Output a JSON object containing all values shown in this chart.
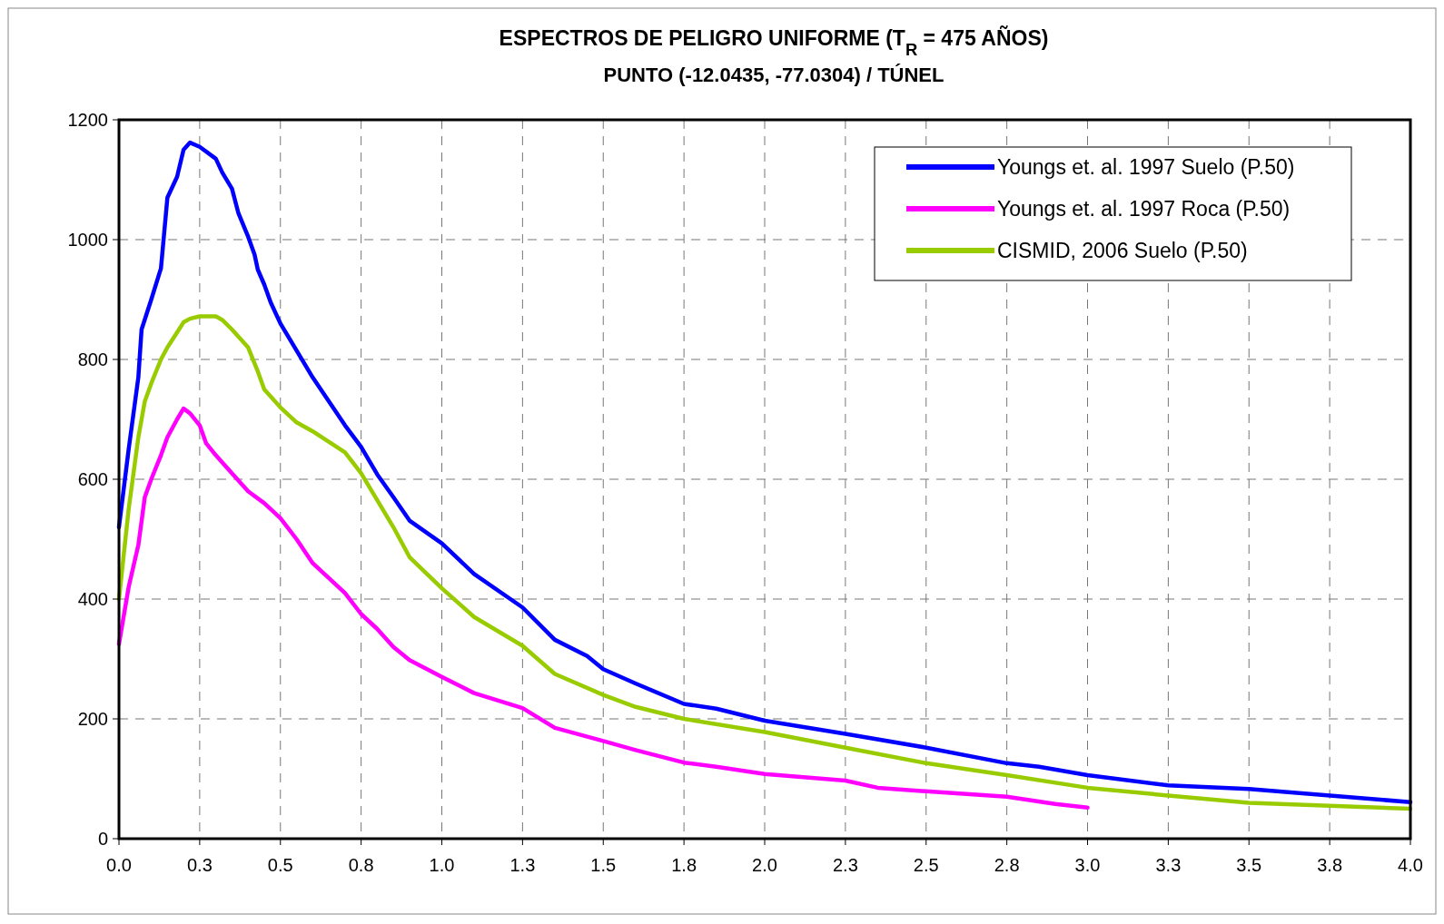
{
  "chart_data": {
    "type": "line",
    "title": "ESPECTROS DE PELIGRO UNIFORME (T$_{R}$ = 475 AÑOS)",
    "subtitle": "PUNTO (-12.0435, -77.0304) / TÚNEL",
    "xlim": [
      0,
      4
    ],
    "ylim": [
      0,
      1200
    ],
    "xticks": [
      {
        "value": 0,
        "label": "0.0"
      },
      {
        "value": 0.25,
        "label": "0.3"
      },
      {
        "value": 0.5,
        "label": "0.5"
      },
      {
        "value": 0.75,
        "label": "0.8"
      },
      {
        "value": 1,
        "label": "1.0"
      },
      {
        "value": 1.25,
        "label": "1.3"
      },
      {
        "value": 1.5,
        "label": "1.5"
      },
      {
        "value": 1.75,
        "label": "1.8"
      },
      {
        "value": 2,
        "label": "2.0"
      },
      {
        "value": 2.25,
        "label": "2.3"
      },
      {
        "value": 2.5,
        "label": "2.5"
      },
      {
        "value": 2.75,
        "label": "2.8"
      },
      {
        "value": 3,
        "label": "3.0"
      },
      {
        "value": 3.25,
        "label": "3.3"
      },
      {
        "value": 3.5,
        "label": "3.5"
      },
      {
        "value": 3.75,
        "label": "3.8"
      },
      {
        "value": 4,
        "label": "4.0"
      }
    ],
    "yticks": [
      0,
      200,
      400,
      600,
      800,
      1000,
      1200
    ],
    "grid": true,
    "legend": "top right",
    "marker": "none",
    "series": [
      {
        "name": "Youngs et. al. 1997 Suelo (P.50)",
        "color": "#0000ff",
        "x": [
          0,
          0.03,
          0.06,
          0.07,
          0.1,
          0.13,
          0.15,
          0.18,
          0.2,
          0.22,
          0.25,
          0.3,
          0.32,
          0.35,
          0.37,
          0.4,
          0.42,
          0.43,
          0.45,
          0.47,
          0.5,
          0.6,
          0.7,
          0.75,
          0.8,
          0.85,
          0.9,
          1,
          1.1,
          1.25,
          1.35,
          1.45,
          1.5,
          1.6,
          1.75,
          1.85,
          2,
          2.25,
          2.5,
          2.75,
          2.85,
          3,
          3.25,
          3.5,
          4
        ],
        "values": [
          520,
          650,
          770,
          850,
          900,
          952,
          1070,
          1105,
          1150,
          1162,
          1155,
          1135,
          1112,
          1085,
          1044,
          1005,
          975,
          950,
          925,
          895,
          860,
          770,
          690,
          654,
          608,
          570,
          531,
          493,
          442,
          386,
          332,
          305,
          283,
          259,
          225,
          217,
          197,
          175,
          152,
          126,
          120,
          106,
          89,
          83,
          61
        ]
      },
      {
        "name": "Youngs et. al. 1997 Roca (P.50)",
        "color": "#ff00ff",
        "x": [
          0,
          0.03,
          0.06,
          0.08,
          0.1,
          0.13,
          0.15,
          0.18,
          0.2,
          0.22,
          0.25,
          0.27,
          0.3,
          0.35,
          0.4,
          0.45,
          0.5,
          0.55,
          0.6,
          0.7,
          0.75,
          0.8,
          0.85,
          0.9,
          1,
          1.1,
          1.25,
          1.35,
          1.5,
          1.6,
          1.75,
          1.85,
          2,
          2.25,
          2.35,
          2.5,
          2.75,
          2.9,
          3
        ],
        "values": [
          325,
          420,
          490,
          570,
          600,
          640,
          670,
          700,
          718,
          710,
          690,
          660,
          640,
          610,
          580,
          560,
          535,
          500,
          460,
          410,
          375,
          350,
          320,
          298,
          270,
          243,
          218,
          185,
          163,
          148,
          127,
          120,
          108,
          97,
          85,
          79,
          70,
          58,
          52
        ]
      },
      {
        "name": "CISMID, 2006 Suelo (P.50)",
        "color": "#99cc00",
        "x": [
          0,
          0.03,
          0.06,
          0.08,
          0.1,
          0.13,
          0.15,
          0.18,
          0.2,
          0.22,
          0.25,
          0.3,
          0.32,
          0.35,
          0.4,
          0.43,
          0.45,
          0.5,
          0.55,
          0.6,
          0.7,
          0.75,
          0.8,
          0.85,
          0.9,
          1,
          1.1,
          1.25,
          1.35,
          1.5,
          1.6,
          1.75,
          2,
          2.25,
          2.5,
          2.75,
          3,
          3.25,
          3.5,
          4
        ],
        "values": [
          400,
          550,
          670,
          730,
          760,
          800,
          820,
          845,
          862,
          868,
          872,
          872,
          866,
          850,
          820,
          780,
          750,
          720,
          695,
          680,
          645,
          610,
          565,
          520,
          470,
          418,
          370,
          322,
          275,
          240,
          220,
          200,
          178,
          152,
          126,
          106,
          85,
          72,
          60,
          50
        ]
      }
    ]
  }
}
